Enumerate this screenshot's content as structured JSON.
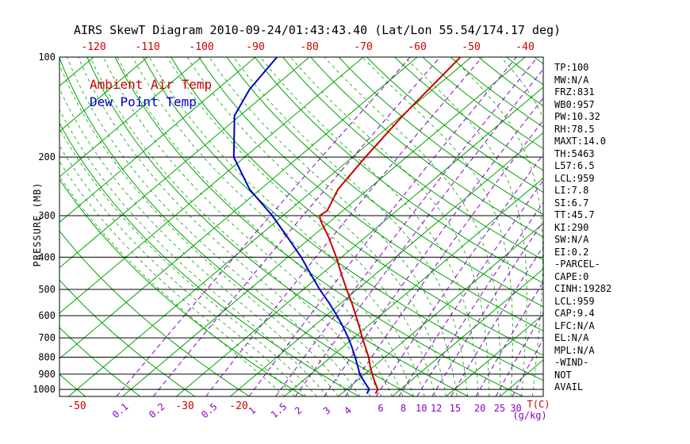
{
  "title": "AIRS SkewT Diagram 2010-09-24/01:43:43.40 (Lat/Lon 55.54/174.17 deg)",
  "legend": {
    "temp": "Ambient Air Temp",
    "dewpoint": "Dew Point Temp"
  },
  "colors": {
    "green": "#00a400",
    "purple": "#8b00c8",
    "red": "#cc0000",
    "blue": "#0000c8",
    "black": "#000000"
  },
  "axes": {
    "pressure_label": "PRESSURE (MB)",
    "pressure_ticks": [
      100,
      200,
      300,
      400,
      500,
      600,
      700,
      800,
      900,
      1000
    ],
    "top_temp_ticks": [
      -120,
      -110,
      -100,
      -90,
      -80,
      -70,
      -60,
      -50,
      -40
    ],
    "bottom_temp_ticks": [
      -50,
      -30,
      -20
    ],
    "temp_unit": "T(C)",
    "mixing_unit": "(g/kg)"
  },
  "params": [
    "TP:100",
    "MW:N/A",
    "FRZ:831",
    "WB0:957",
    "PW:10.32",
    "RH:78.5",
    "MAXT:14.0",
    "TH:5463",
    "L57:6.5",
    "LCL:959",
    "LI:7.8",
    "SI:6.7",
    "TT:45.7",
    "KI:290",
    "SW:N/A",
    "EI:0.2",
    "-PARCEL-",
    "CAPE:0",
    "CINH:19282",
    "LCL:959",
    "CAP:9.4",
    "LFC:N/A",
    "EL:N/A",
    "MPL:N/A",
    "-WIND-",
    "NOT",
    "AVAIL"
  ],
  "chart_data": {
    "type": "line",
    "title": "AIRS SkewT Diagram 2010-09-24/01:43:43.40 (Lat/Lon 55.54/174.17 deg)",
    "x_axis": {
      "label": "T(C)",
      "skewed": true,
      "top_ticks_C": [
        -120,
        -110,
        -100,
        -90,
        -80,
        -70,
        -60,
        -50,
        -40
      ],
      "bottom_ticks_C": [
        -50,
        -30,
        -20
      ]
    },
    "y_axis": {
      "label": "PRESSURE (MB)",
      "scale": "log",
      "ticks_mb": [
        100,
        200,
        300,
        400,
        500,
        600,
        700,
        800,
        900,
        1000
      ],
      "range_mb": [
        100,
        1050
      ]
    },
    "isotherm_step_C": 10,
    "dry_adiabat_step_K": 10,
    "mixing_ratio_lines_g_per_kg": [
      0.1,
      0.2,
      0.5,
      1,
      1.5,
      2,
      3,
      4,
      6,
      8,
      10,
      12,
      15,
      20,
      25,
      30
    ],
    "series": [
      {
        "name": "Ambient Air Temp",
        "color": "#cc0000",
        "points_p_mb_t_c": [
          [
            1030,
            6.3
          ],
          [
            1000,
            5.8
          ],
          [
            950,
            3.6
          ],
          [
            900,
            1.4
          ],
          [
            850,
            -0.8
          ],
          [
            800,
            -3.0
          ],
          [
            750,
            -5.6
          ],
          [
            700,
            -8.4
          ],
          [
            650,
            -11.3
          ],
          [
            600,
            -14.5
          ],
          [
            550,
            -18.0
          ],
          [
            500,
            -22.0
          ],
          [
            450,
            -26.3
          ],
          [
            400,
            -31.0
          ],
          [
            350,
            -36.6
          ],
          [
            310,
            -42.0
          ],
          [
            300,
            -43.2
          ],
          [
            290,
            -42.9
          ],
          [
            250,
            -45.6
          ],
          [
            200,
            -47.6
          ],
          [
            150,
            -49.8
          ],
          [
            100,
            -52.0
          ]
        ]
      },
      {
        "name": "Dew Point Temp",
        "color": "#0000c8",
        "points_p_mb_t_c": [
          [
            1030,
            4.7
          ],
          [
            1000,
            4.2
          ],
          [
            950,
            1.7
          ],
          [
            900,
            -0.9
          ],
          [
            850,
            -3.1
          ],
          [
            800,
            -5.5
          ],
          [
            750,
            -8.1
          ],
          [
            700,
            -11.0
          ],
          [
            650,
            -14.3
          ],
          [
            600,
            -18.0
          ],
          [
            550,
            -22.2
          ],
          [
            500,
            -27.0
          ],
          [
            450,
            -32.0
          ],
          [
            400,
            -37.5
          ],
          [
            350,
            -44.2
          ],
          [
            300,
            -52.0
          ],
          [
            250,
            -62.0
          ],
          [
            200,
            -72.0
          ],
          [
            150,
            -81.0
          ],
          [
            125,
            -84.0
          ],
          [
            100,
            -86.0
          ]
        ]
      }
    ]
  }
}
